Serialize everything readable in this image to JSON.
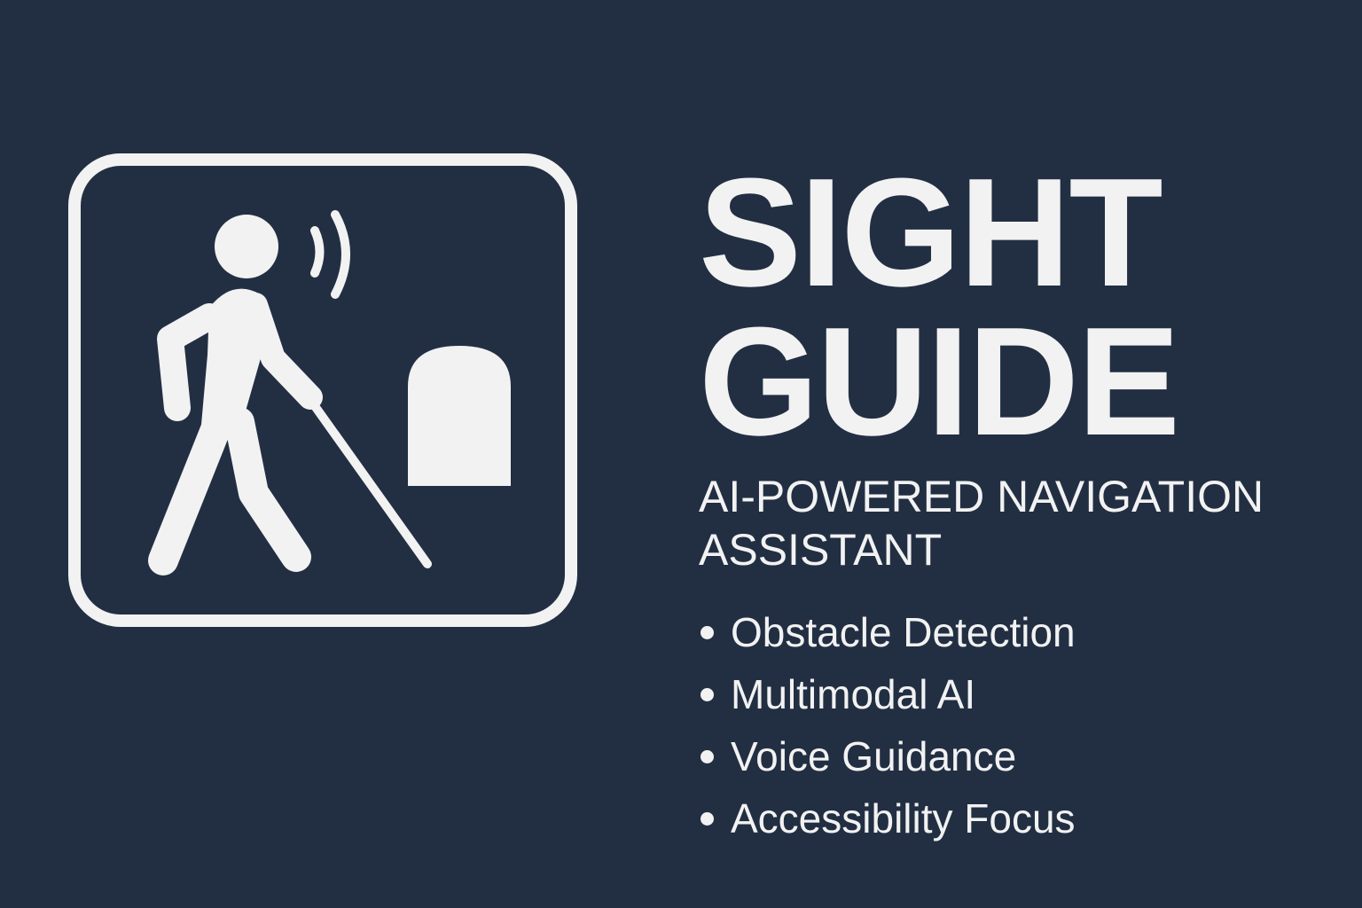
{
  "colors": {
    "background": "#222f43",
    "foreground": "#f2f2f2"
  },
  "logo": {
    "icon": "blind-person-with-cane-icon",
    "sound_icon": "sound-waves-icon",
    "obstacle_icon": "obstacle-icon"
  },
  "title": {
    "line1": "SIGHT",
    "line2": "GUIDE"
  },
  "subtitle": {
    "line1": "AI-POWERED NAVIGATION",
    "line2": "ASSISTANT"
  },
  "features": [
    "Obstacle Detection",
    "Multimodal AI",
    "Voice Guidance",
    "Accessibility Focus"
  ]
}
